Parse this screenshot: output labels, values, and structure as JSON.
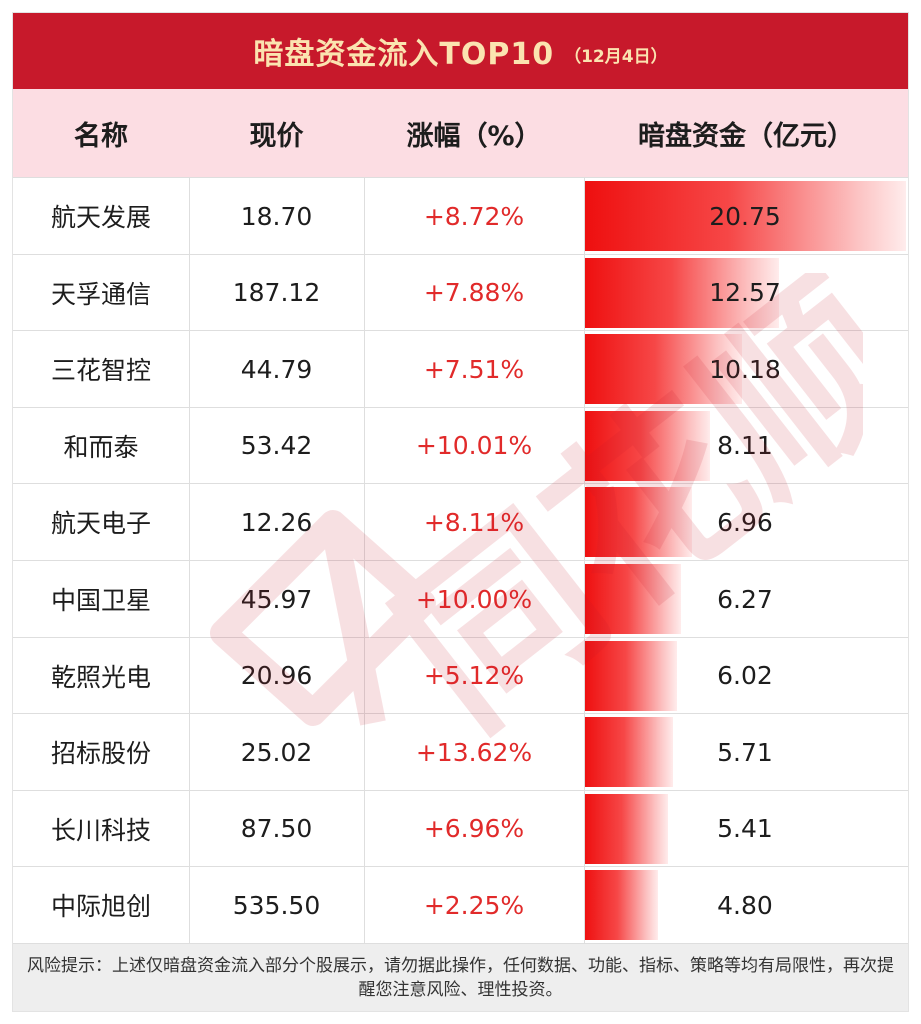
{
  "title": {
    "main": "暗盘资金流入TOP10",
    "date": "（12月4日）"
  },
  "headers": {
    "name": "名称",
    "price": "现价",
    "change": "涨幅（%）",
    "flow": "暗盘资金（亿元）"
  },
  "colors": {
    "title_bg": "#c7192b",
    "title_text": "#fbe3b0",
    "header_bg": "#fcdde3",
    "change_text": "#e12a2a",
    "bar": "#ee0f0f"
  },
  "chart_data": {
    "type": "table",
    "title": "暗盘资金流入TOP10",
    "columns": [
      "名称",
      "现价",
      "涨幅（%）",
      "暗盘资金（亿元）"
    ],
    "rows": [
      {
        "name": "航天发展",
        "price": "18.70",
        "change": "+8.72%",
        "flow": "20.75",
        "flow_value": 20.75
      },
      {
        "name": "天孚通信",
        "price": "187.12",
        "change": "+7.88%",
        "flow": "12.57",
        "flow_value": 12.57
      },
      {
        "name": "三花智控",
        "price": "44.79",
        "change": "+7.51%",
        "flow": "10.18",
        "flow_value": 10.18
      },
      {
        "name": "和而泰",
        "price": "53.42",
        "change": "+10.01%",
        "flow": "8.11",
        "flow_value": 8.11
      },
      {
        "name": "航天电子",
        "price": "12.26",
        "change": "+8.11%",
        "flow": "6.96",
        "flow_value": 6.96
      },
      {
        "name": "中国卫星",
        "price": "45.97",
        "change": "+10.00%",
        "flow": "6.27",
        "flow_value": 6.27
      },
      {
        "name": "乾照光电",
        "price": "20.96",
        "change": "+5.12%",
        "flow": "6.02",
        "flow_value": 6.02
      },
      {
        "name": "招标股份",
        "price": "25.02",
        "change": "+13.62%",
        "flow": "5.71",
        "flow_value": 5.71
      },
      {
        "name": "长川科技",
        "price": "87.50",
        "change": "+6.96%",
        "flow": "5.41",
        "flow_value": 5.41
      },
      {
        "name": "中际旭创",
        "price": "535.50",
        "change": "+2.25%",
        "flow": "4.80",
        "flow_value": 4.8
      }
    ]
  },
  "footer": {
    "disclaimer": "风险提示：上述仅暗盘资金流入部分个股展示，请勿据此操作，任何数据、功能、指标、策略等均有局限性，再次提醒您注意风险、理性投资。"
  },
  "watermark": {
    "text": "同花顺"
  }
}
